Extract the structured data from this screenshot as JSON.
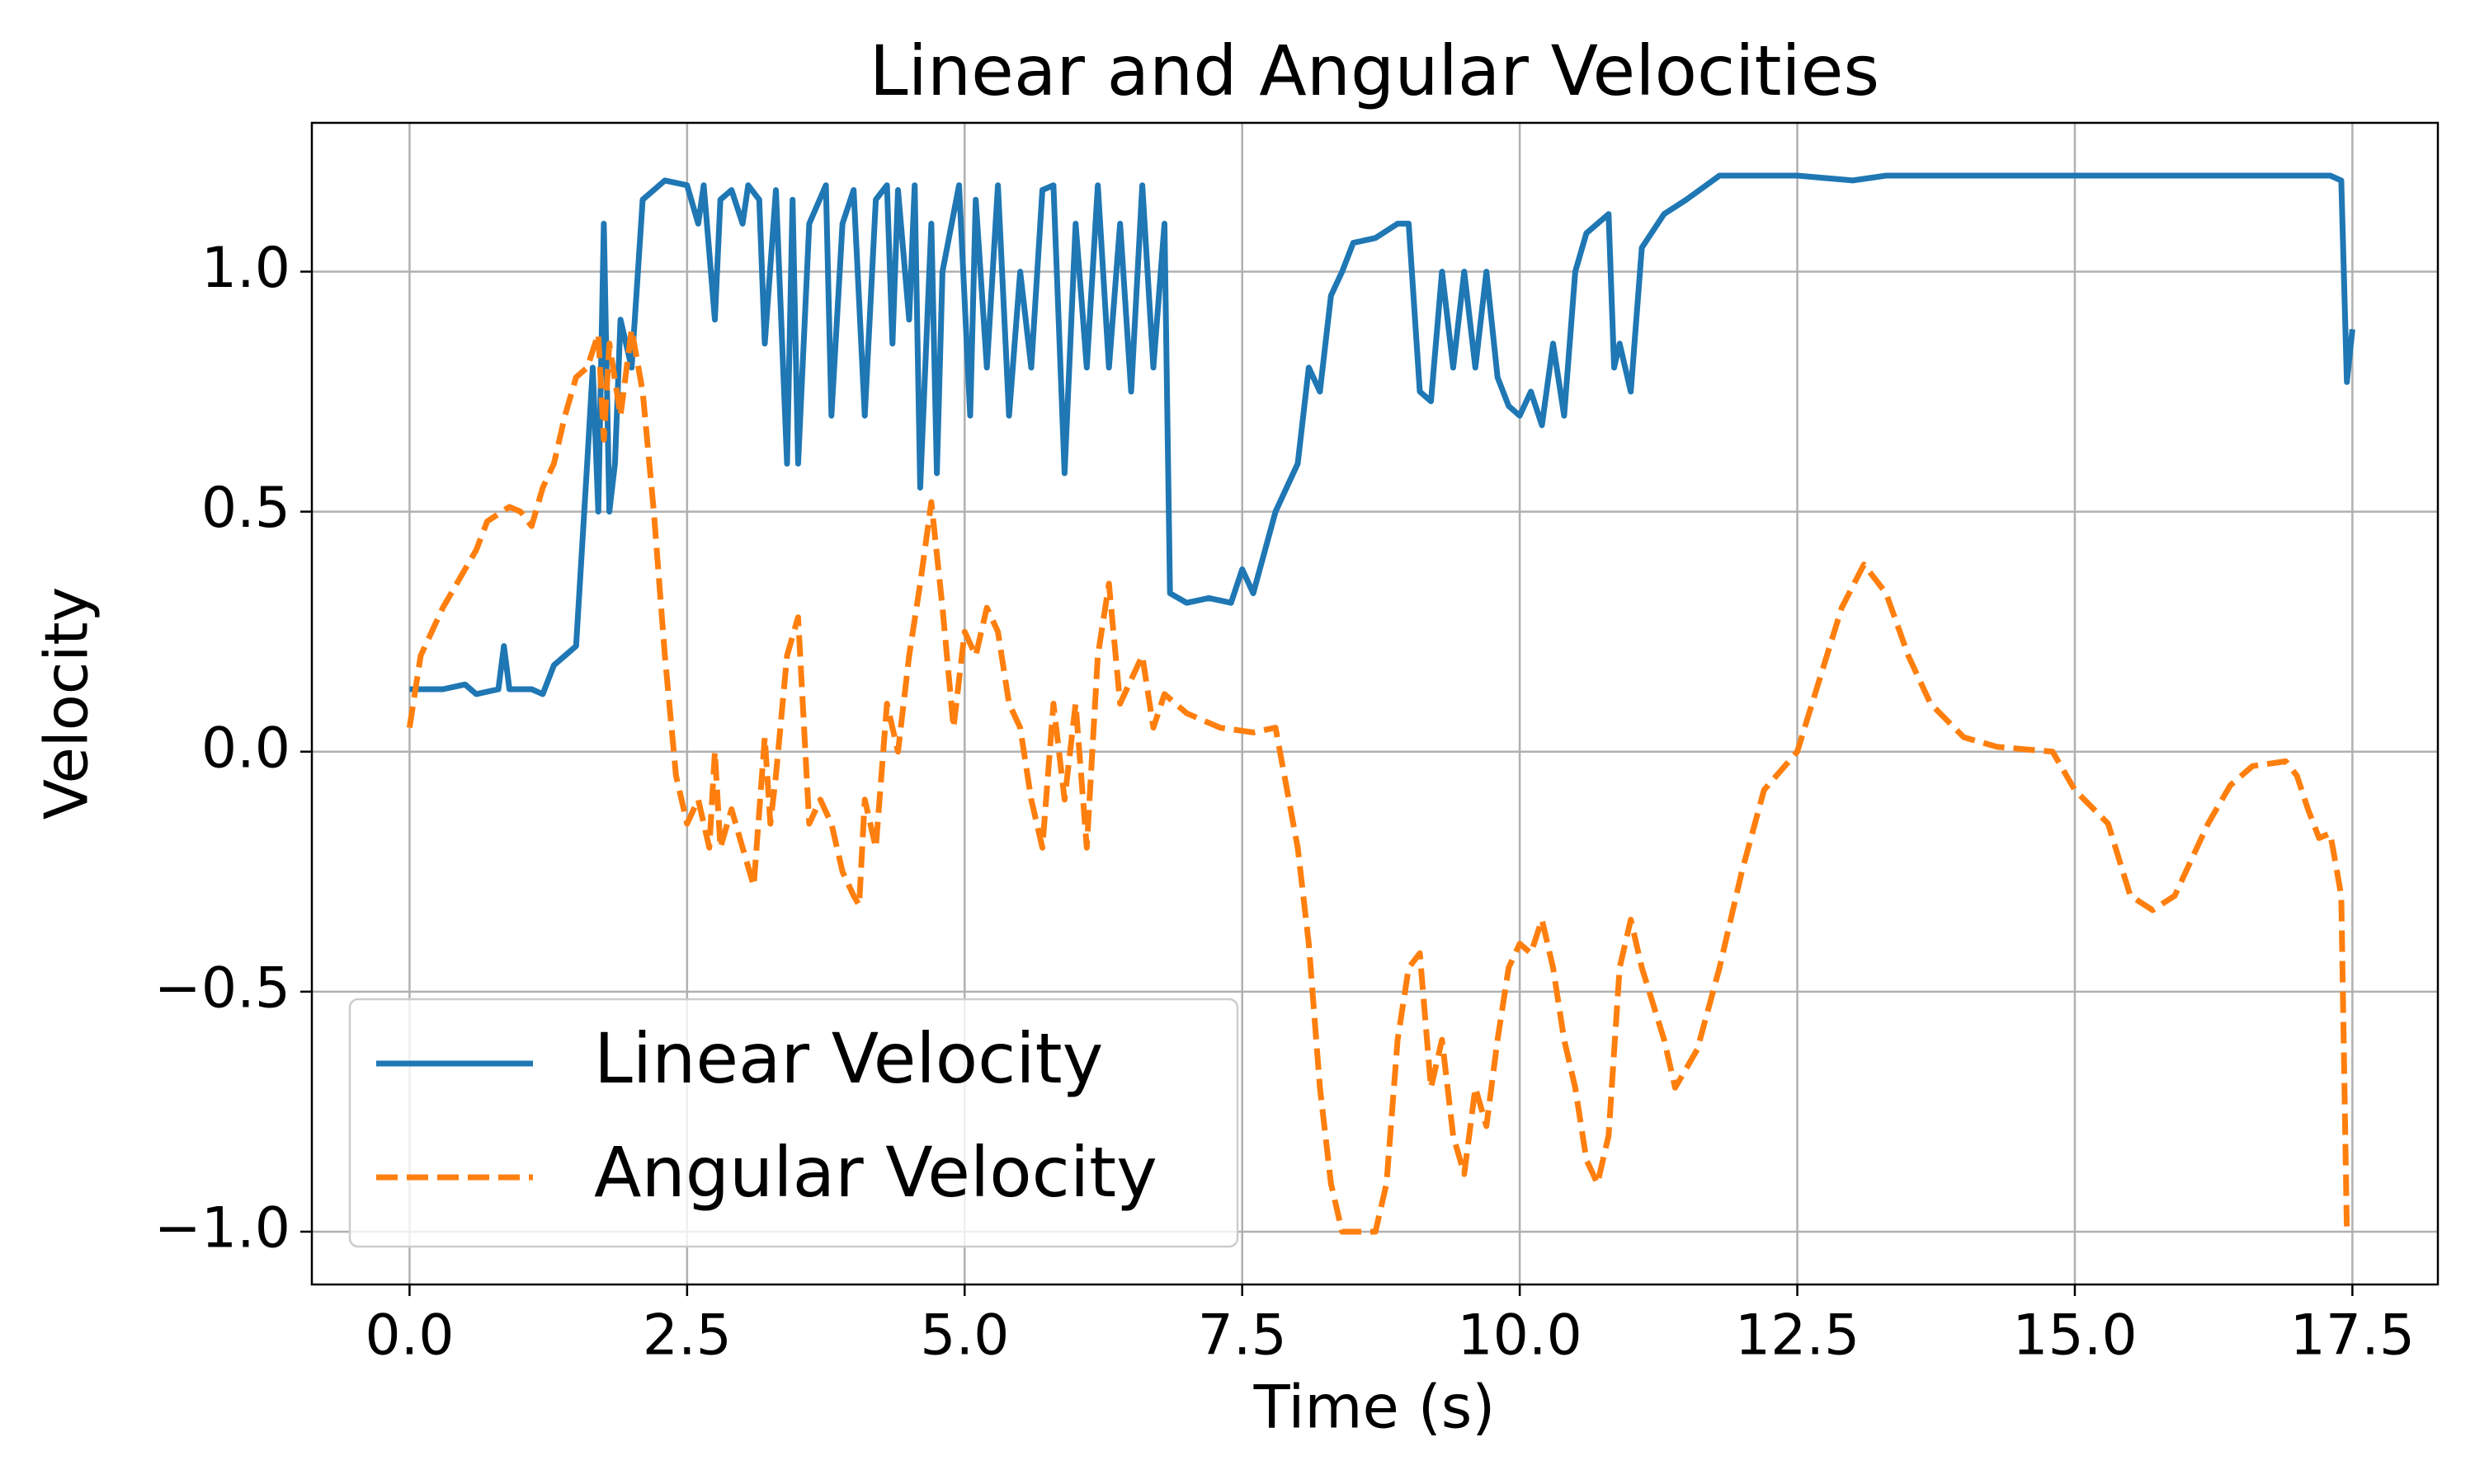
{
  "chart_data": {
    "type": "line",
    "title": "Linear and Angular Velocities",
    "xlabel": "Time (s)",
    "ylabel": "Velocity",
    "xlim": [
      -0.88,
      18.27
    ],
    "ylim": [
      -1.11,
      1.31
    ],
    "xticks": [
      {
        "value": 0,
        "label": "0.0"
      },
      2.5,
      {
        "value": 5,
        "label": "5.0"
      },
      7.5,
      {
        "value": 10,
        "label": "10.0"
      },
      12.5,
      {
        "value": 15,
        "label": "15.0"
      },
      17.5
    ],
    "yticks": [
      {
        "value": -1,
        "label": "−1.0"
      },
      {
        "value": -0.5,
        "label": "−0.5"
      },
      {
        "value": 0,
        "label": "0.0"
      },
      {
        "value": 0.5,
        "label": "0.5"
      },
      {
        "value": 1,
        "label": "1.0"
      }
    ],
    "grid": true,
    "legend": "lower left",
    "series": [
      {
        "name": "Linear Velocity",
        "color": "#1f77b4",
        "style": "solid",
        "x": [
          0,
          0.3,
          0.5,
          0.6,
          0.8,
          0.85,
          0.9,
          1.1,
          1.2,
          1.3,
          1.4,
          1.5,
          1.6,
          1.65,
          1.7,
          1.75,
          1.8,
          1.85,
          1.9,
          2.0,
          2.1,
          2.3,
          2.5,
          2.6,
          2.65,
          2.75,
          2.8,
          2.9,
          3.0,
          3.05,
          3.15,
          3.2,
          3.3,
          3.4,
          3.45,
          3.5,
          3.6,
          3.75,
          3.8,
          3.9,
          4.0,
          4.1,
          4.2,
          4.3,
          4.35,
          4.4,
          4.5,
          4.55,
          4.6,
          4.7,
          4.75,
          4.8,
          4.95,
          5.05,
          5.1,
          5.2,
          5.3,
          5.4,
          5.5,
          5.6,
          5.7,
          5.8,
          5.9,
          6.0,
          6.1,
          6.2,
          6.3,
          6.4,
          6.5,
          6.6,
          6.7,
          6.8,
          6.85,
          7.0,
          7.2,
          7.4,
          7.5,
          7.6,
          7.8,
          7.9,
          8.0,
          8.1,
          8.2,
          8.3,
          8.4,
          8.5,
          8.7,
          8.9,
          9.0,
          9.1,
          9.2,
          9.3,
          9.4,
          9.5,
          9.6,
          9.7,
          9.8,
          9.9,
          10.0,
          10.1,
          10.2,
          10.3,
          10.4,
          10.5,
          10.6,
          10.7,
          10.8,
          10.85,
          10.9,
          11.0,
          11.1,
          11.3,
          11.5,
          11.8,
          12.5,
          13.0,
          13.3,
          14.0,
          15.0,
          16.0,
          17.0,
          17.3,
          17.4,
          17.45,
          17.5
        ],
        "values": [
          0.13,
          0.13,
          0.14,
          0.12,
          0.13,
          0.22,
          0.13,
          0.13,
          0.12,
          0.18,
          0.2,
          0.22,
          0.6,
          0.8,
          0.5,
          1.1,
          0.5,
          0.6,
          0.9,
          0.8,
          1.15,
          1.19,
          1.18,
          1.1,
          1.18,
          0.9,
          1.15,
          1.17,
          1.1,
          1.18,
          1.15,
          0.85,
          1.17,
          0.6,
          1.15,
          0.6,
          1.1,
          1.18,
          0.7,
          1.1,
          1.17,
          0.7,
          1.15,
          1.18,
          0.85,
          1.17,
          0.9,
          1.18,
          0.55,
          1.1,
          0.58,
          1.0,
          1.18,
          0.7,
          1.15,
          0.8,
          1.18,
          0.7,
          1.0,
          0.8,
          1.17,
          1.18,
          0.58,
          1.1,
          0.8,
          1.18,
          0.8,
          1.1,
          0.75,
          1.18,
          0.8,
          1.1,
          0.33,
          0.31,
          0.32,
          0.31,
          0.38,
          0.33,
          0.5,
          0.55,
          0.6,
          0.8,
          0.75,
          0.95,
          1.0,
          1.06,
          1.07,
          1.1,
          1.1,
          0.75,
          0.73,
          1.0,
          0.8,
          1.0,
          0.8,
          1.0,
          0.78,
          0.72,
          0.7,
          0.75,
          0.68,
          0.85,
          0.7,
          1.0,
          1.08,
          1.1,
          1.12,
          0.8,
          0.85,
          0.75,
          1.05,
          1.12,
          1.15,
          1.2,
          1.2,
          1.19,
          1.2,
          1.2,
          1.2,
          1.2,
          1.2,
          1.2,
          1.19,
          0.77,
          0.88
        ]
      },
      {
        "name": "Angular Velocity",
        "color": "#ff7f0e",
        "style": "dashed",
        "x": [
          0,
          0.1,
          0.3,
          0.5,
          0.6,
          0.7,
          0.9,
          1.0,
          1.1,
          1.2,
          1.3,
          1.4,
          1.5,
          1.6,
          1.7,
          1.75,
          1.8,
          1.9,
          2.0,
          2.1,
          2.2,
          2.3,
          2.4,
          2.5,
          2.6,
          2.7,
          2.75,
          2.8,
          2.9,
          3.0,
          3.1,
          3.2,
          3.25,
          3.3,
          3.4,
          3.5,
          3.6,
          3.7,
          3.8,
          3.9,
          4.0,
          4.05,
          4.1,
          4.2,
          4.3,
          4.4,
          4.5,
          4.6,
          4.7,
          4.8,
          4.9,
          5.0,
          5.1,
          5.2,
          5.3,
          5.4,
          5.5,
          5.6,
          5.7,
          5.8,
          5.9,
          6.0,
          6.1,
          6.2,
          6.3,
          6.4,
          6.5,
          6.6,
          6.7,
          6.8,
          7.0,
          7.3,
          7.6,
          7.8,
          8.0,
          8.1,
          8.2,
          8.3,
          8.4,
          8.6,
          8.7,
          8.8,
          8.9,
          9.0,
          9.1,
          9.2,
          9.3,
          9.4,
          9.5,
          9.6,
          9.7,
          9.8,
          9.9,
          10.0,
          10.1,
          10.2,
          10.3,
          10.4,
          10.5,
          10.6,
          10.7,
          10.8,
          10.9,
          11.0,
          11.1,
          11.3,
          11.4,
          11.6,
          11.8,
          12.0,
          12.2,
          12.5,
          12.7,
          12.9,
          13.1,
          13.3,
          13.5,
          13.7,
          14.0,
          14.3,
          14.8,
          15.0,
          15.3,
          15.5,
          15.7,
          15.9,
          16.0,
          16.2,
          16.4,
          16.6,
          16.9,
          17.0,
          17.1,
          17.2,
          17.3,
          17.4,
          17.45
        ],
        "values": [
          0.05,
          0.2,
          0.3,
          0.38,
          0.42,
          0.48,
          0.51,
          0.5,
          0.47,
          0.55,
          0.6,
          0.7,
          0.78,
          0.8,
          0.87,
          0.65,
          0.85,
          0.7,
          0.88,
          0.75,
          0.5,
          0.2,
          -0.05,
          -0.15,
          -0.1,
          -0.2,
          0.0,
          -0.2,
          -0.12,
          -0.2,
          -0.28,
          0.03,
          -0.15,
          -0.05,
          0.2,
          0.28,
          -0.15,
          -0.1,
          -0.15,
          -0.25,
          -0.3,
          -0.32,
          -0.1,
          -0.2,
          0.1,
          0.0,
          0.2,
          0.35,
          0.52,
          0.3,
          0.05,
          0.25,
          0.2,
          0.3,
          0.25,
          0.1,
          0.05,
          -0.1,
          -0.2,
          0.1,
          -0.1,
          0.1,
          -0.2,
          0.2,
          0.35,
          0.1,
          0.15,
          0.2,
          0.05,
          0.12,
          0.08,
          0.05,
          0.04,
          0.05,
          -0.2,
          -0.4,
          -0.7,
          -0.9,
          -1.0,
          -1.0,
          -1.0,
          -0.9,
          -0.6,
          -0.45,
          -0.42,
          -0.7,
          -0.6,
          -0.8,
          -0.88,
          -0.7,
          -0.78,
          -0.6,
          -0.45,
          -0.4,
          -0.42,
          -0.35,
          -0.45,
          -0.6,
          -0.7,
          -0.85,
          -0.9,
          -0.8,
          -0.45,
          -0.35,
          -0.45,
          -0.6,
          -0.7,
          -0.62,
          -0.45,
          -0.25,
          -0.08,
          0.0,
          0.15,
          0.3,
          0.39,
          0.33,
          0.2,
          0.1,
          0.03,
          0.01,
          0.0,
          -0.08,
          -0.15,
          -0.3,
          -0.33,
          -0.3,
          -0.25,
          -0.15,
          -0.07,
          -0.03,
          -0.02,
          -0.05,
          -0.12,
          -0.18,
          -0.17,
          -0.3,
          -1.0
        ]
      }
    ]
  }
}
